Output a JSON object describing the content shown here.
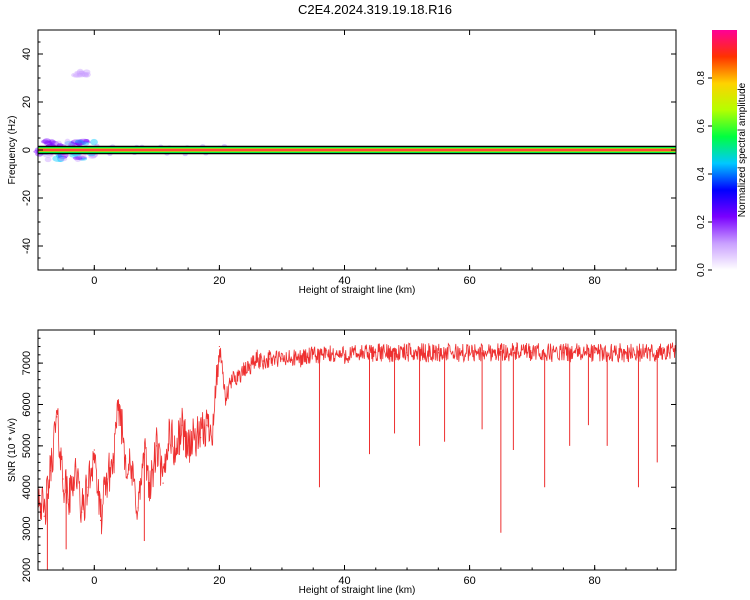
{
  "title": "C2E4.2024.319.19.18.R16",
  "chart_data": [
    {
      "type": "heatmap",
      "title": "C2E4.2024.319.19.18.R16",
      "xlabel": "Height of straight line (km)",
      "ylabel": "Frequency (Hz)",
      "xlim": [
        -9,
        93
      ],
      "ylim": [
        -50,
        50
      ],
      "xticks": [
        0,
        20,
        40,
        60,
        80
      ],
      "yticks": [
        -40,
        -20,
        0,
        20,
        40
      ],
      "colorbar": {
        "label": "Normalized spectral amplitude",
        "range": [
          0,
          1
        ],
        "ticks": [
          0.0,
          0.2,
          0.4,
          0.6,
          0.8
        ],
        "colors": [
          "#ffffff",
          "#c9a0ff",
          "#7a00ff",
          "#0000ff",
          "#00c8ff",
          "#00ff40",
          "#b4ff00",
          "#ffd200",
          "#ff3200",
          "#ff0096"
        ]
      },
      "peak_frequency_hz": 0,
      "band_edges_hz": [
        -1.5,
        1.5
      ],
      "features": [
        {
          "x_range": [
            -9,
            0
          ],
          "f_range": [
            -4,
            4
          ],
          "amplitude": 0.4
        },
        {
          "x_range": [
            -3,
            -1
          ],
          "f_range": [
            31,
            33
          ],
          "amplitude": 0.1
        }
      ]
    },
    {
      "type": "line",
      "xlabel": "Height of straight line (km)",
      "ylabel": "SNR (10 * v/v)",
      "xlim": [
        -9,
        93
      ],
      "ylim": [
        2000,
        7800
      ],
      "xticks": [
        0,
        20,
        40,
        60,
        80
      ],
      "yticks": [
        2000,
        3000,
        4000,
        5000,
        6000,
        7000
      ],
      "color": "#ee3030",
      "series": [
        {
          "x": [
            -9,
            -8,
            -7,
            -6,
            -5,
            -4,
            -3,
            -2,
            -1,
            0,
            1,
            2,
            3,
            4,
            5,
            6,
            7,
            8,
            9,
            10,
            11,
            12,
            13,
            14,
            15,
            16,
            17,
            18,
            19,
            20,
            21,
            22,
            23,
            24,
            25,
            26,
            27,
            28,
            30,
            32,
            34,
            36,
            38,
            40,
            45,
            50,
            55,
            60,
            65,
            70,
            75,
            80,
            85,
            90,
            93
          ],
          "y": [
            4000,
            3300,
            4400,
            5700,
            4200,
            3700,
            4500,
            3400,
            4000,
            4900,
            3200,
            4200,
            4600,
            6000,
            4700,
            4300,
            3500,
            4800,
            4000,
            5000,
            4100,
            5400,
            4800,
            5500,
            5000,
            5200,
            5200,
            5500,
            5500,
            7400,
            6100,
            6600,
            6700,
            6800,
            6950,
            7100,
            7050,
            7100,
            7100,
            7100,
            7150,
            7200,
            7200,
            7200,
            7250,
            7250,
            7250,
            7250,
            7280,
            7250,
            7250,
            7250,
            7250,
            7250,
            7300
          ]
        }
      ],
      "dips": [
        {
          "x": -7.5,
          "y": 2000
        },
        {
          "x": -4.5,
          "y": 2500
        },
        {
          "x": 8,
          "y": 2700
        },
        {
          "x": 36,
          "y": 4000
        },
        {
          "x": 44,
          "y": 4800
        },
        {
          "x": 48,
          "y": 5300
        },
        {
          "x": 52,
          "y": 5000
        },
        {
          "x": 56,
          "y": 5100
        },
        {
          "x": 62,
          "y": 5400
        },
        {
          "x": 65,
          "y": 2900
        },
        {
          "x": 67,
          "y": 4900
        },
        {
          "x": 72,
          "y": 4000
        },
        {
          "x": 76,
          "y": 5000
        },
        {
          "x": 79,
          "y": 5500
        },
        {
          "x": 82,
          "y": 5000
        },
        {
          "x": 87,
          "y": 4000
        },
        {
          "x": 90,
          "y": 4600
        }
      ]
    }
  ]
}
